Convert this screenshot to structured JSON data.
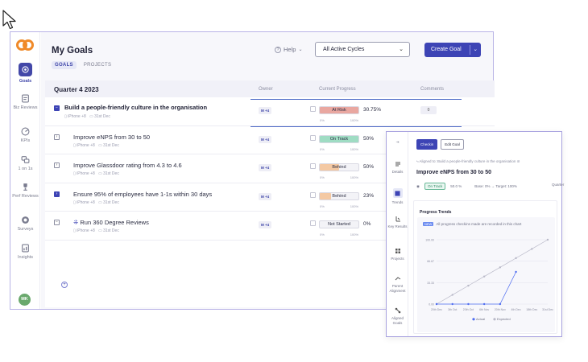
{
  "sidebar": {
    "items": [
      {
        "label": "Goals",
        "icon": "goals-icon"
      },
      {
        "label": "Biz Reviews",
        "icon": "biz-reviews-icon"
      },
      {
        "label": "KPIs",
        "icon": "kpis-icon"
      },
      {
        "label": "1 on 1s",
        "icon": "one-on-one-icon"
      },
      {
        "label": "Perf Reviews",
        "icon": "trophy-icon"
      },
      {
        "label": "Surveys",
        "icon": "surveys-icon"
      },
      {
        "label": "Insights",
        "icon": "insights-icon"
      }
    ],
    "avatar": "MK"
  },
  "header": {
    "title": "My Goals",
    "tabs": [
      "GOALS",
      "PROJECTS"
    ],
    "help": "Help",
    "cycle": "All Active Cycles",
    "create": "Create Goal"
  },
  "table": {
    "quarter": "Quarter 4 2023",
    "columns": [
      "Owner",
      "Current Progress",
      "Comments"
    ],
    "rows": [
      {
        "title": "Build a people-friendly culture in the organisation",
        "device": "iPhone +8",
        "date": "31st Dec",
        "owner": "M +4",
        "status": "At Risk",
        "progress": 30.75,
        "percent": "30.75%",
        "color": "#e9a7a0",
        "low": "0%",
        "high": "100%",
        "comment": "0"
      },
      {
        "title": "Improve eNPS from 30 to 50",
        "device": "iPhone +8",
        "date": "31st Dec",
        "owner": "M +4",
        "status": "On Track",
        "progress": 50,
        "percent": "50%",
        "color": "#9fdcc3",
        "low": "0%",
        "high": "100%"
      },
      {
        "title": "Improve Glassdoor rating from 4.3 to 4.6",
        "device": "iPhone +8",
        "date": "31st Dec",
        "owner": "M +4",
        "status": "Behind",
        "progress": 50,
        "percent": "50%",
        "color": "#f4c9a3",
        "low": "0%",
        "high": "100%"
      },
      {
        "title": "Ensure 95% of employees have 1-1s within 30 days",
        "device": "iPhone +8",
        "date": "31st Dec",
        "owner": "M +4",
        "status": "Behind",
        "progress": 23,
        "percent": "23%",
        "color": "#f4c9a3",
        "low": "0%",
        "high": "100%"
      },
      {
        "title": "Run 360 Degree Reviews",
        "device": "iPhone +8",
        "date": "31st Dec",
        "owner": "M +4",
        "status": "Not Started",
        "progress": 0,
        "percent": "0%",
        "color": "#e4e4ec",
        "low": "0%",
        "high": "100%"
      }
    ]
  },
  "panel": {
    "nav": [
      "Details",
      "Trends",
      "Key Results",
      "Projects",
      "Parent Alignment",
      "Aligned Goals"
    ],
    "tabs": [
      "Checkin",
      "Edit Goal"
    ],
    "aligned": "Aligned to: Build a people-friendly culture in the organisation",
    "title": "Improve eNPS from 30 to 50",
    "status": "On Track",
    "progress": "50.0 %",
    "base": "Base: 0% → Target: 100%",
    "quarter": "Quarter",
    "trends_title": "Progress Trends",
    "note_tag": "NEW",
    "note": "All progress checkins made are recorded in this chart",
    "legend_actual": "Actual",
    "legend_expected": "Expected"
  },
  "chart_data": {
    "type": "line",
    "title": "Progress Trends",
    "x": [
      "20th Dec",
      "3th Oct",
      "20th Oct",
      "6th Nov",
      "20th Nov",
      "4th Dec",
      "18th Dec",
      "31st Dec"
    ],
    "yticks": [
      "0.00",
      "33.33",
      "66.67",
      "100.00"
    ],
    "ylim": [
      0,
      100
    ],
    "series": [
      {
        "name": "Actual",
        "color": "#4f6df0",
        "values": [
          0,
          0,
          0,
          0,
          0,
          50,
          null,
          null
        ]
      },
      {
        "name": "Expected",
        "color": "#b9b9c8",
        "values": [
          0,
          14.3,
          28.6,
          42.9,
          57.1,
          71.4,
          85.7,
          100
        ]
      }
    ],
    "legend": "bottom"
  }
}
